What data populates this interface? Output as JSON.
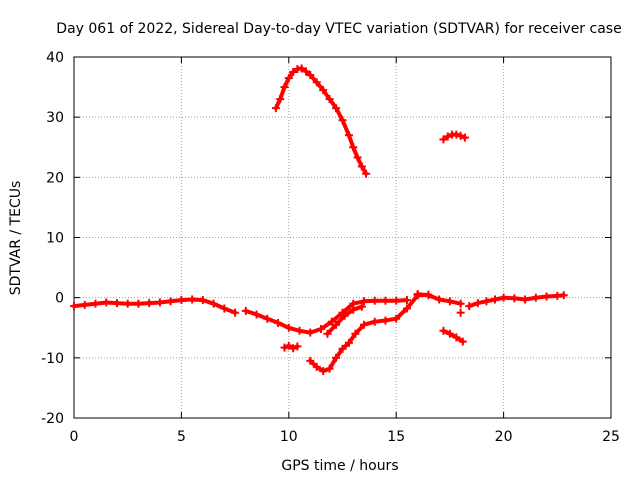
{
  "chart_data": {
    "type": "scatter",
    "title": "Day 061 of 2022, Sidereal Day-to-day VTEC variation (SDTVAR) for receiver case",
    "xlabel": "GPS time / hours",
    "ylabel": "SDTVAR / TECUs",
    "xlim": [
      0,
      25
    ],
    "ylim": [
      -20,
      40
    ],
    "xticks": [
      "0",
      "5",
      "10",
      "15",
      "20",
      "25"
    ],
    "yticks": [
      "-20",
      "-10",
      "0",
      "10",
      "20",
      "30",
      "40"
    ],
    "grid": true,
    "series": [
      {
        "name": "SDTVAR",
        "color": "#ff0000",
        "marker": "plus",
        "segments": [
          {
            "x": [
              0.0,
              0.5,
              1.0,
              1.5,
              2.0,
              2.5,
              3.0,
              3.5,
              4.0,
              4.5,
              5.0,
              5.5,
              6.0,
              6.5,
              7.0,
              7.5
            ],
            "y": [
              -1.4,
              -1.2,
              -1.0,
              -0.8,
              -0.9,
              -1.0,
              -1.0,
              -0.9,
              -0.8,
              -0.6,
              -0.4,
              -0.3,
              -0.4,
              -1.0,
              -1.8,
              -2.5
            ]
          },
          {
            "x": [
              8.0,
              8.5,
              9.0,
              9.5,
              10.0,
              10.5,
              11.0,
              11.5,
              12.0,
              12.5,
              13.0,
              13.5,
              14.0,
              14.5,
              15.0,
              15.5
            ],
            "y": [
              -2.2,
              -2.8,
              -3.5,
              -4.2,
              -5.0,
              -5.5,
              -5.8,
              -5.2,
              -4.0,
              -2.5,
              -1.0,
              -0.6,
              -0.5,
              -0.5,
              -0.5,
              -0.4
            ]
          },
          {
            "x": [
              9.8,
              10.0,
              10.2,
              10.4
            ],
            "y": [
              -8.3,
              -8.0,
              -8.4,
              -8.1
            ]
          },
          {
            "x": [
              11.0,
              11.3,
              11.6,
              11.9,
              12.2,
              12.5,
              12.8,
              13.1,
              13.5,
              14.0,
              14.5,
              15.0,
              15.5,
              16.0,
              16.5
            ],
            "y": [
              -10.5,
              -11.5,
              -12.2,
              -11.8,
              -10.0,
              -8.5,
              -7.5,
              -6.0,
              -4.5,
              -4.0,
              -3.8,
              -3.5,
              -1.8,
              0.4,
              0.5
            ]
          },
          {
            "x": [
              11.8,
              12.2,
              12.6,
              13.0,
              13.4
            ],
            "y": [
              -6.0,
              -4.5,
              -3.0,
              -2.0,
              -1.5
            ]
          },
          {
            "x": [
              16.0,
              16.5,
              17.0,
              17.5,
              18.0
            ],
            "y": [
              0.6,
              0.4,
              -0.3,
              -0.6,
              -1.0
            ]
          },
          {
            "x": [
              17.2,
              17.5,
              17.8,
              18.1
            ],
            "y": [
              -5.5,
              -6.0,
              -6.6,
              -7.3
            ]
          },
          {
            "x": [
              18.0
            ],
            "y": [
              -2.5
            ]
          },
          {
            "x": [
              18.4,
              18.8,
              19.2,
              19.6,
              20.0,
              20.5,
              21.0,
              21.5,
              22.0,
              22.5,
              22.8
            ],
            "y": [
              -1.4,
              -0.9,
              -0.6,
              -0.3,
              0.0,
              -0.1,
              -0.3,
              0.0,
              0.2,
              0.3,
              0.4
            ]
          },
          {
            "x": [
              9.4,
              9.6,
              9.8,
              10.0,
              10.2,
              10.4,
              10.6,
              10.8,
              11.0,
              11.3,
              11.6,
              11.9,
              12.2,
              12.5,
              12.8,
              13.0,
              13.2,
              13.4,
              13.6
            ],
            "y": [
              31.5,
              33.0,
              35.0,
              36.5,
              37.5,
              38.0,
              38.1,
              37.6,
              37.0,
              35.8,
              34.5,
              33.0,
              31.5,
              29.5,
              27.0,
              25.0,
              23.3,
              21.8,
              20.6
            ]
          },
          {
            "x": [
              17.2,
              17.4,
              17.6,
              17.8,
              18.0,
              18.2
            ],
            "y": [
              26.3,
              26.8,
              27.1,
              27.1,
              26.9,
              26.6
            ]
          }
        ]
      }
    ]
  }
}
